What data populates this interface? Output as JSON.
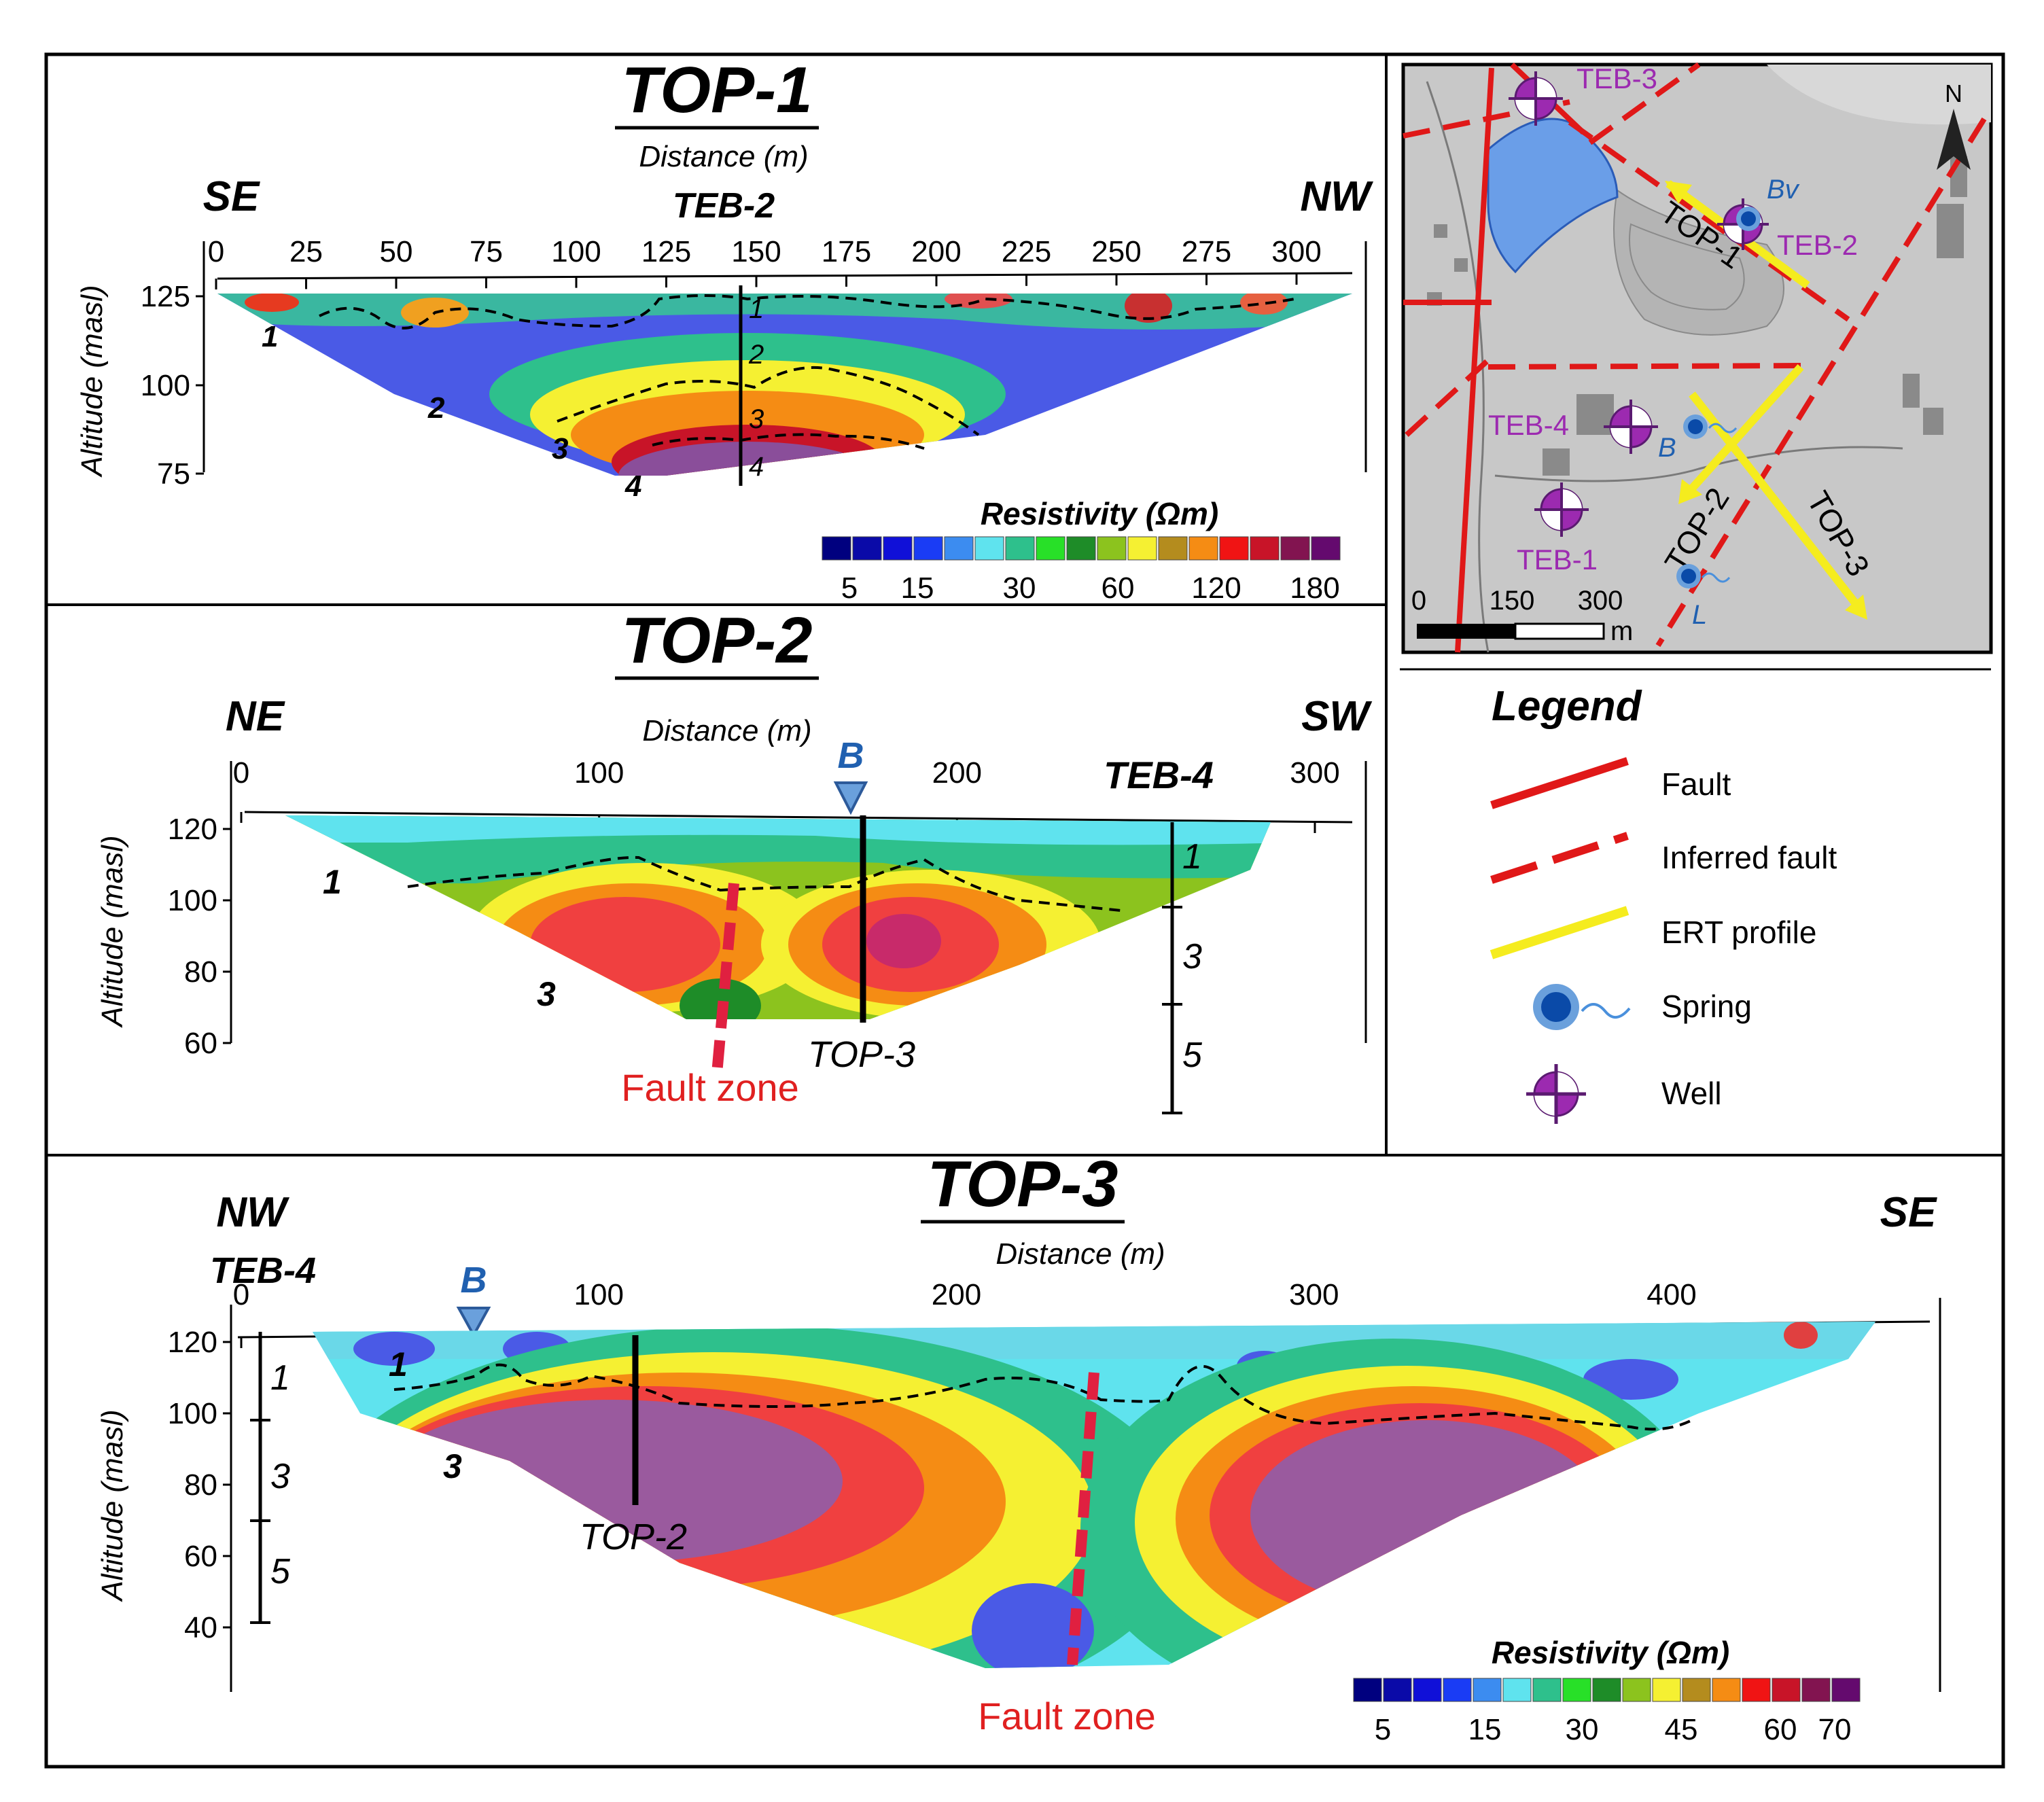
{
  "profiles": {
    "top1": {
      "title": "TOP-1",
      "xlabel": "Distance (m)",
      "ylabel": "Altitude (masl)",
      "dir_left": "SE",
      "dir_right": "NW",
      "well": "TEB-2",
      "x_ticks": [
        "0",
        "25",
        "50",
        "75",
        "100",
        "125",
        "150",
        "175",
        "200",
        "225",
        "250",
        "275",
        "300"
      ],
      "y_ticks": [
        "125",
        "100",
        "75"
      ],
      "units": [
        "1",
        "2",
        "3",
        "4"
      ],
      "log_units": [
        "1",
        "2",
        "3",
        "4"
      ]
    },
    "top2": {
      "title": "TOP-2",
      "xlabel": "Distance (m)",
      "ylabel": "Altitude (masl)",
      "dir_left": "NE",
      "dir_right": "SW",
      "spring": "B",
      "well": "TEB-4",
      "x_ticks": [
        "0",
        "100",
        "200",
        "300"
      ],
      "y_ticks": [
        "120",
        "100",
        "80",
        "60"
      ],
      "units": [
        "1",
        "3"
      ],
      "log_units": [
        "1",
        "3",
        "5"
      ],
      "crossing": "TOP-3",
      "fault_label": "Fault zone"
    },
    "top3": {
      "title": "TOP-3",
      "xlabel": "Distance (m)",
      "ylabel": "Altitude (masl)",
      "dir_left": "NW",
      "dir_right": "SE",
      "well": "TEB-4",
      "spring": "B",
      "x_ticks": [
        "0",
        "100",
        "200",
        "300",
        "400"
      ],
      "y_ticks": [
        "120",
        "100",
        "80",
        "60",
        "40"
      ],
      "units": [
        "1",
        "3"
      ],
      "log_units": [
        "1",
        "3",
        "5"
      ],
      "crossing": "TOP-2",
      "fault_label": "Fault zone"
    }
  },
  "colorbar1": {
    "title": "Resistivity (Ωm)",
    "colors": [
      "#00007f",
      "#0a0aa8",
      "#1010d8",
      "#1a3cf5",
      "#3c8cf0",
      "#5fe3ee",
      "#2ec08c",
      "#28e028",
      "#1e8c28",
      "#8cc31e",
      "#f5f032",
      "#b48c1e",
      "#f58c14",
      "#f01414",
      "#c81428",
      "#821450",
      "#640a6e"
    ],
    "labels": [
      "5",
      "15",
      "30",
      "60",
      "120",
      "180"
    ]
  },
  "colorbar2": {
    "title": "Resistivity (Ωm)",
    "colors": [
      "#00007f",
      "#0a0aa8",
      "#1010d8",
      "#1a3cf5",
      "#3c8cf0",
      "#5fe3ee",
      "#2ec08c",
      "#28e028",
      "#1e8c28",
      "#8cc31e",
      "#f5f032",
      "#b48c1e",
      "#f58c14",
      "#f01414",
      "#c81428",
      "#821450",
      "#640a6e"
    ],
    "labels": [
      "5",
      "15",
      "30",
      "45",
      "60",
      "70"
    ]
  },
  "map": {
    "wells": [
      "TEB-3",
      "TEB-2",
      "TEB-4",
      "TEB-1"
    ],
    "springs": [
      "Bv",
      "B",
      "L"
    ],
    "profiles": [
      "TOP-1",
      "TOP-2",
      "TOP-3"
    ],
    "north": "N",
    "scale_ticks": [
      "0",
      "150",
      "300"
    ],
    "scale_unit": "m"
  },
  "legend": {
    "title": "Legend",
    "items": [
      "Fault",
      "Inferred fault",
      "ERT profile",
      "Spring",
      "Well"
    ]
  }
}
